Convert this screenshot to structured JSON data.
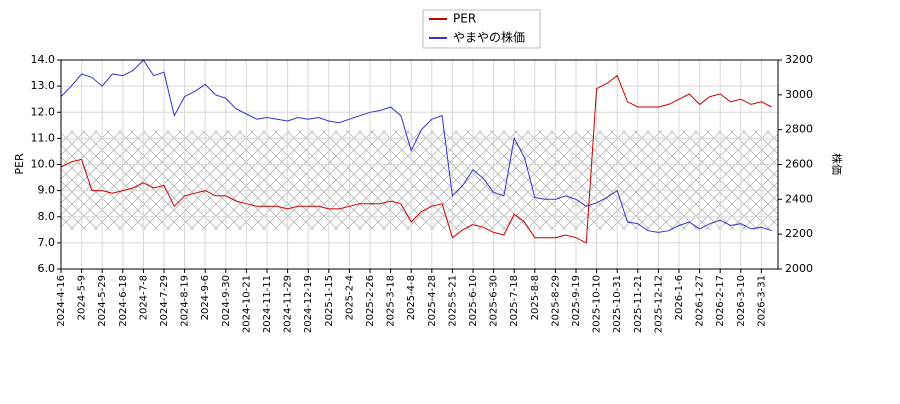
{
  "chart_data": {
    "type": "line",
    "categories": [
      "2024-4-16",
      null,
      "2024-5-9",
      null,
      "2024-5-29",
      null,
      "2024-6-18",
      null,
      "2024-7-8",
      null,
      "2024-7-29",
      null,
      "2024-8-19",
      null,
      "2024-9-6",
      null,
      "2024-9-30",
      null,
      "2024-10-21",
      null,
      "2024-11-11",
      null,
      "2024-11-29",
      null,
      "2024-12-19",
      null,
      "2025-1-15",
      null,
      "2025-2-4",
      null,
      "2025-2-26",
      null,
      "2025-3-18",
      null,
      "2025-4-8",
      null,
      "2025-4-28",
      null,
      "2025-5-21",
      null,
      "2025-6-10",
      null,
      "2025-6-30",
      null,
      "2025-7-18",
      null,
      "2025-8-8",
      null,
      "2025-8-29",
      null,
      "2025-9-19",
      null,
      "2025-10-10",
      null,
      "2025-10-31",
      null,
      "2025-11-21",
      null,
      "2025-12-12",
      null,
      "2026-1-6",
      null,
      "2026-1-27",
      null,
      "2026-2-17",
      null,
      "2026-3-10",
      null,
      "2026-3-31",
      null
    ],
    "series": [
      {
        "name": "PER",
        "color": "#cc0000",
        "values": [
          9.9,
          10.1,
          10.2,
          9.0,
          9.0,
          8.9,
          9.0,
          9.1,
          9.3,
          9.1,
          9.2,
          8.4,
          8.8,
          8.9,
          9.0,
          8.8,
          8.8,
          8.6,
          8.5,
          8.4,
          8.4,
          8.4,
          8.3,
          8.4,
          8.4,
          8.4,
          8.3,
          8.3,
          8.4,
          8.5,
          8.5,
          8.5,
          8.6,
          8.5,
          7.8,
          8.2,
          8.4,
          8.5,
          7.2,
          7.5,
          7.7,
          7.6,
          7.4,
          7.3,
          8.1,
          7.8,
          7.2,
          7.2,
          7.2,
          7.3,
          7.2,
          7.0,
          12.9,
          13.1,
          13.4,
          12.4,
          12.2,
          12.2,
          12.2,
          12.3,
          12.5,
          12.7,
          12.3,
          12.6,
          12.7,
          12.4,
          12.5,
          12.3,
          12.4,
          12.2
        ]
      },
      {
        "name": "やまやの株価",
        "color": "#3333cc",
        "axis": "y2",
        "values": [
          2990,
          3050,
          3120,
          3100,
          3050,
          3120,
          3110,
          3140,
          3200,
          3110,
          3130,
          2880,
          2990,
          3020,
          3060,
          3000,
          2980,
          2920,
          2890,
          2860,
          2870,
          2860,
          2850,
          2870,
          2860,
          2870,
          2850,
          2840,
          2860,
          2880,
          2900,
          2910,
          2930,
          2880,
          2680,
          2800,
          2860,
          2880,
          2420,
          2480,
          2570,
          2520,
          2440,
          2420,
          2750,
          2640,
          2410,
          2400,
          2400,
          2420,
          2400,
          2360,
          2380,
          2410,
          2450,
          2270,
          2260,
          2220,
          2210,
          2220,
          2250,
          2270,
          2230,
          2260,
          2280,
          2250,
          2260,
          2230,
          2240,
          2220
        ]
      }
    ],
    "shaded_range": [
      7.5,
      11.3
    ],
    "ylabel": "PER",
    "y2label": "株価",
    "ylim": [
      6,
      14
    ],
    "yticks": [
      {
        "value": 6,
        "label": "6.0"
      },
      {
        "value": 7,
        "label": "7.0"
      },
      {
        "value": 8,
        "label": "8.0"
      },
      {
        "value": 9,
        "label": "9.0"
      },
      {
        "value": 10,
        "label": "10.0"
      },
      {
        "value": 11,
        "label": "11.0"
      },
      {
        "value": 12,
        "label": "12.0"
      },
      {
        "value": 13,
        "label": "13.0"
      },
      {
        "value": 14,
        "label": "14.0"
      }
    ],
    "y2lim": [
      2000,
      3200
    ],
    "y2ticks": [
      2000,
      2200,
      2400,
      2600,
      2800,
      3000,
      3200
    ],
    "grid": true,
    "legend": "top"
  }
}
